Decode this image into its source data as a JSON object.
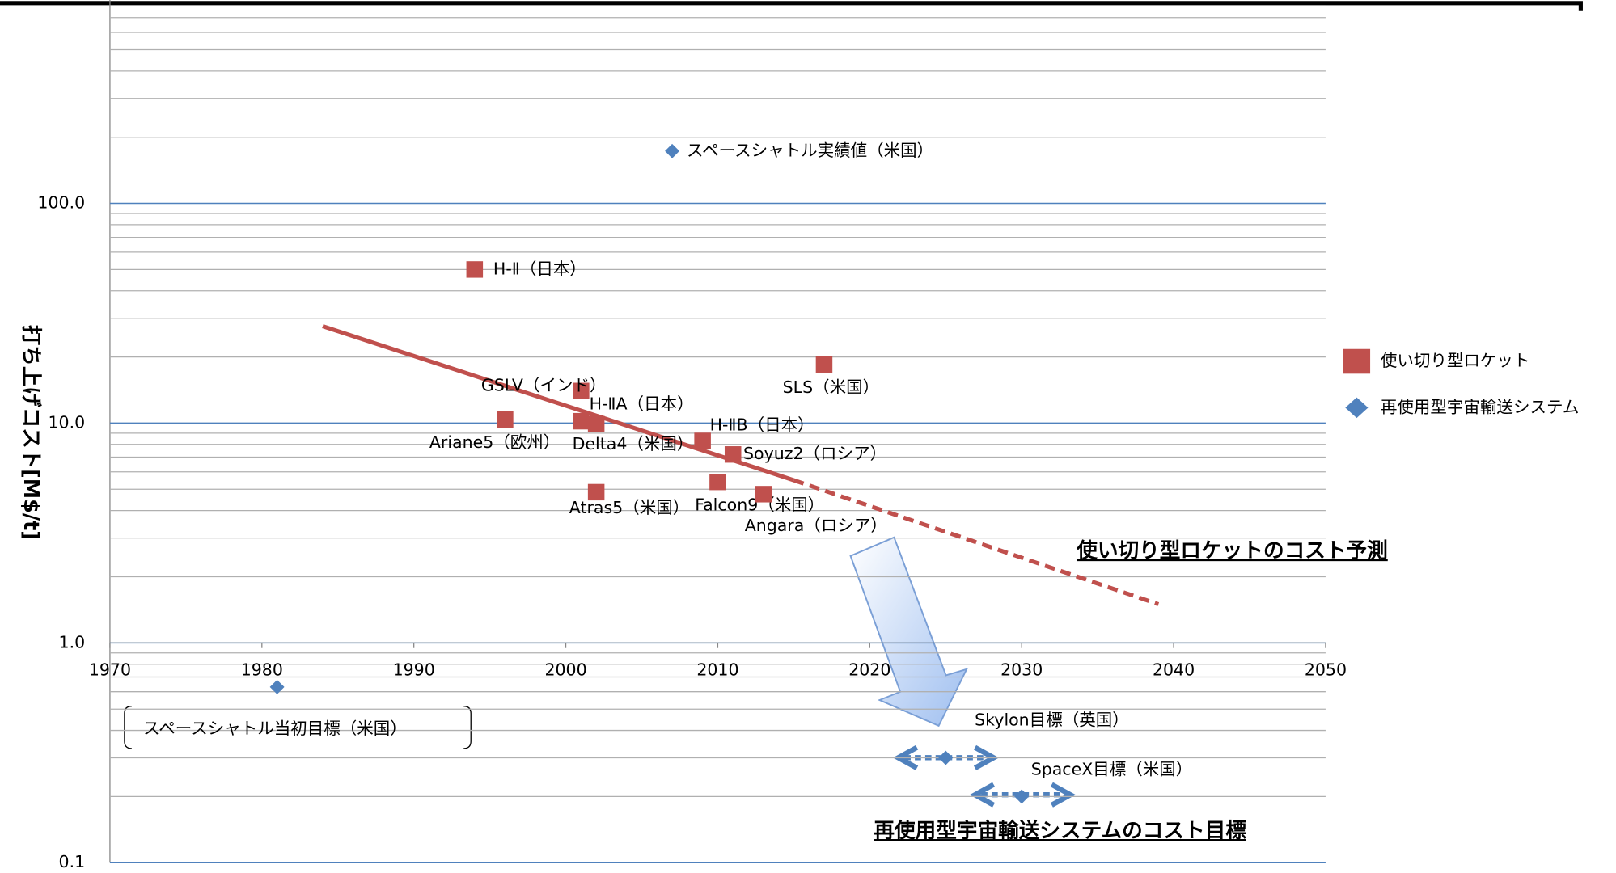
{
  "chart_data": {
    "type": "scatter",
    "y_label": "打ち上げコスト[M$/t]",
    "log_y": true,
    "grid": true,
    "minor_grid": true,
    "legend": "right",
    "xlim": [
      1970,
      2050
    ],
    "xticks": [
      1970,
      1980,
      1990,
      2000,
      2010,
      2020,
      2030,
      2040,
      2050
    ],
    "ylim": [
      0.1,
      1000
    ],
    "yticks": [
      0.1,
      {
        "value": 1,
        "label": "1.0"
      },
      {
        "value": 10,
        "label": "10.0"
      },
      {
        "value": 100,
        "label": "100.0"
      }
    ],
    "series": [
      {
        "name": "使い切り型ロケット",
        "color": "#c0504d",
        "marker": "square",
        "x": [
          1994,
          2001,
          2001,
          1996,
          2002,
          2009,
          2011,
          2010,
          2013,
          2002,
          2017
        ],
        "values": [
          50,
          14,
          10.2,
          10.4,
          9.9,
          8.3,
          7.2,
          5.4,
          4.75,
          4.85,
          18.5
        ],
        "labels": [
          "H-Ⅱ（日本）",
          "GSLV（インド）",
          "H-ⅡA（日本）",
          "Ariane5（欧州）",
          "Delta4（米国）",
          "H-ⅡB（日本）",
          "Soyuz2（ロシア）",
          "Falcon9（米国）",
          "Angara（ロシア）",
          "Atras5（米国）",
          "SLS（米国）"
        ]
      },
      {
        "name": "再使用型宇宙輸送システム",
        "color": "#4f81bd",
        "marker": "diamond",
        "x": [
          2007,
          1981,
          2025,
          2030
        ],
        "values": [
          173,
          0.63,
          0.3,
          0.2
        ],
        "labels": [
          "スペースシャトル実績値（米国）",
          "スペースシャトル当初目標（米国）",
          "Skylon目標（英国）",
          "SpaceX目標（米国）"
        ]
      }
    ],
    "trend": {
      "color": "#c0504d",
      "x": [
        1984,
        2015,
        2039
      ],
      "values": [
        27.6,
        5.5,
        1.5
      ],
      "dashed_from": 1
    },
    "annotations": [
      "使い切り型ロケットのコスト予測",
      "再使用型宇宙輸送システムのコスト目標"
    ]
  }
}
